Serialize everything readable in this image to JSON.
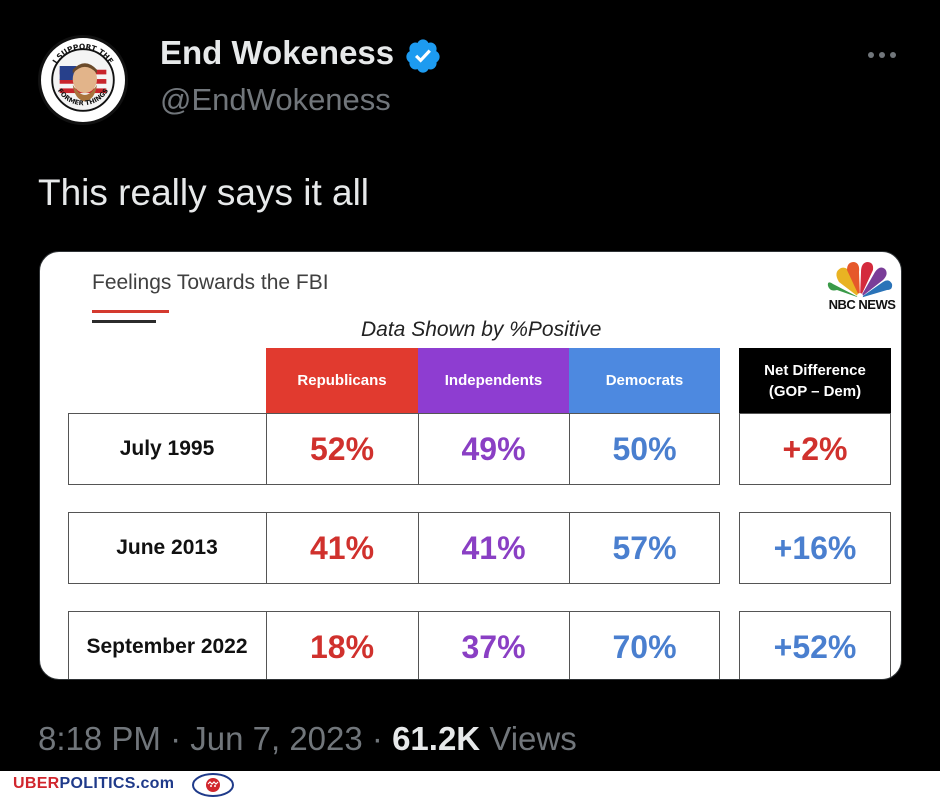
{
  "tweet": {
    "display_name": "End Wokeness",
    "handle": "@EndWokeness",
    "text": "This really says it all",
    "time": "8:18 PM",
    "separator": "·",
    "date": "Jun 7, 2023",
    "views_count": "61.2K",
    "views_label": "Views",
    "avatar_text": [
      "I SUPPORT THE",
      "FORMER THINGS"
    ],
    "icons": {
      "verified": "verified-badge-icon",
      "more": "more-options-icon"
    },
    "colors": {
      "background": "#000000",
      "primary_text": "#e7e9ea",
      "secondary_text": "#71767b",
      "verified_blue": "#1d9bf0"
    }
  },
  "media": {
    "title": "Feelings Towards the FBI",
    "subtitle": "Data Shown by %Positive",
    "brand": "NBC NEWS",
    "columns": [
      "Republicans",
      "Independents",
      "Democrats"
    ],
    "net_header": "Net Difference\n(GOP – Dem)",
    "rows": [
      {
        "date": "July 1995",
        "rep": "52%",
        "ind": "49%",
        "dem": "50%",
        "net": "+2%"
      },
      {
        "date": "June 2013",
        "rep": "41%",
        "ind": "41%",
        "dem": "57%",
        "net": "+16%"
      },
      {
        "date": "September 2022",
        "rep": "18%",
        "ind": "37%",
        "dem": "70%",
        "net": "+52%"
      }
    ],
    "colors": {
      "republicans": "#e13a2f",
      "independents": "#8e3dd1",
      "democrats": "#4d89e0",
      "net_positive_red": "#d0312d",
      "net_positive_blue": "#4a7fcf"
    }
  },
  "watermark": {
    "text_a": "UBER",
    "text_b": "POLITICS.com"
  }
}
